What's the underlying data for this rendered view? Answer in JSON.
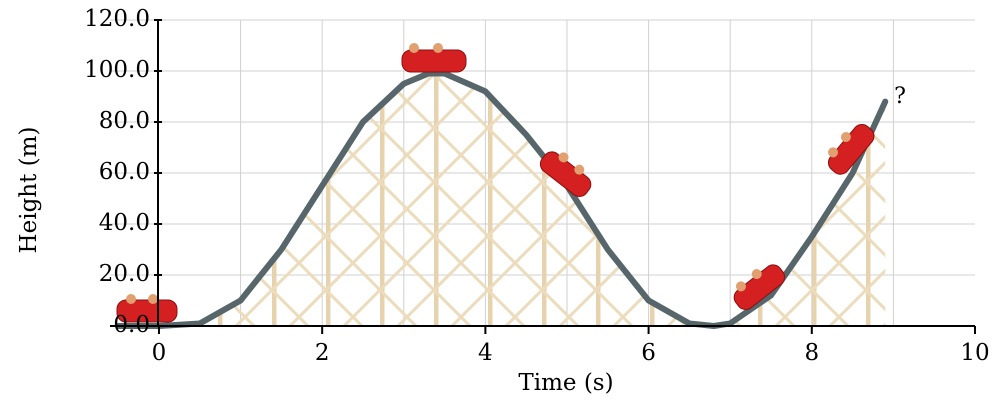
{
  "chart_data": {
    "type": "line",
    "xlabel": "Time (s)",
    "ylabel": "Height (m)",
    "annotation": "?",
    "x": [
      -0.5,
      0.0,
      0.5,
      1.0,
      1.5,
      2.0,
      2.5,
      3.0,
      3.3,
      3.5,
      4.0,
      4.5,
      5.0,
      5.5,
      6.0,
      6.5,
      6.8,
      7.0,
      7.5,
      8.0,
      8.5,
      8.9
    ],
    "series": [
      {
        "color": "#56666b",
        "values": [
          0.0,
          0.0,
          1.0,
          10.0,
          30.0,
          55.0,
          80.0,
          95.0,
          99.0,
          99.0,
          92.0,
          75.0,
          55.0,
          30.0,
          10.0,
          1.0,
          0.0,
          1.0,
          12.0,
          35.0,
          60.0,
          88.0
        ]
      }
    ],
    "xlim": [
      -0.6,
      10
    ],
    "ylim": [
      0,
      120
    ],
    "xticks": [
      0,
      2,
      4,
      6,
      8,
      10
    ],
    "xgrid": [
      1,
      2,
      3,
      4,
      5,
      6,
      7,
      8,
      9
    ],
    "yticks": [
      {
        "value": 0,
        "label": "0.0"
      },
      {
        "value": 20,
        "label": "20.0"
      },
      {
        "value": 40,
        "label": "40.0"
      },
      {
        "value": 60,
        "label": "60.0"
      },
      {
        "value": 80,
        "label": "80.0"
      },
      {
        "value": 100,
        "label": "100.0"
      },
      {
        "value": 120,
        "label": "120.0"
      }
    ],
    "grid": true
  }
}
